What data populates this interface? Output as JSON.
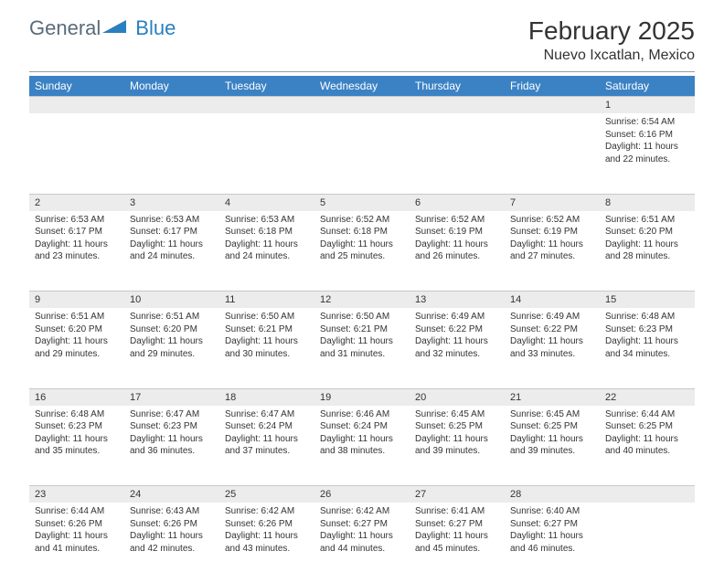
{
  "logo": {
    "text1": "General",
    "text2": "Blue"
  },
  "title": "February 2025",
  "location": "Nuevo Ixcatlan, Mexico",
  "colors": {
    "header_bg": "#3b82c4",
    "header_text": "#ffffff",
    "daynum_bg": "#ececec",
    "border": "#c8c8c8",
    "logo_gray": "#5a6b7a",
    "logo_blue": "#2a7fbf"
  },
  "weekdays": [
    "Sunday",
    "Monday",
    "Tuesday",
    "Wednesday",
    "Thursday",
    "Friday",
    "Saturday"
  ],
  "weeks": [
    [
      null,
      null,
      null,
      null,
      null,
      null,
      {
        "n": "1",
        "sr": "Sunrise: 6:54 AM",
        "ss": "Sunset: 6:16 PM",
        "dl": "Daylight: 11 hours and 22 minutes."
      }
    ],
    [
      {
        "n": "2",
        "sr": "Sunrise: 6:53 AM",
        "ss": "Sunset: 6:17 PM",
        "dl": "Daylight: 11 hours and 23 minutes."
      },
      {
        "n": "3",
        "sr": "Sunrise: 6:53 AM",
        "ss": "Sunset: 6:17 PM",
        "dl": "Daylight: 11 hours and 24 minutes."
      },
      {
        "n": "4",
        "sr": "Sunrise: 6:53 AM",
        "ss": "Sunset: 6:18 PM",
        "dl": "Daylight: 11 hours and 24 minutes."
      },
      {
        "n": "5",
        "sr": "Sunrise: 6:52 AM",
        "ss": "Sunset: 6:18 PM",
        "dl": "Daylight: 11 hours and 25 minutes."
      },
      {
        "n": "6",
        "sr": "Sunrise: 6:52 AM",
        "ss": "Sunset: 6:19 PM",
        "dl": "Daylight: 11 hours and 26 minutes."
      },
      {
        "n": "7",
        "sr": "Sunrise: 6:52 AM",
        "ss": "Sunset: 6:19 PM",
        "dl": "Daylight: 11 hours and 27 minutes."
      },
      {
        "n": "8",
        "sr": "Sunrise: 6:51 AM",
        "ss": "Sunset: 6:20 PM",
        "dl": "Daylight: 11 hours and 28 minutes."
      }
    ],
    [
      {
        "n": "9",
        "sr": "Sunrise: 6:51 AM",
        "ss": "Sunset: 6:20 PM",
        "dl": "Daylight: 11 hours and 29 minutes."
      },
      {
        "n": "10",
        "sr": "Sunrise: 6:51 AM",
        "ss": "Sunset: 6:20 PM",
        "dl": "Daylight: 11 hours and 29 minutes."
      },
      {
        "n": "11",
        "sr": "Sunrise: 6:50 AM",
        "ss": "Sunset: 6:21 PM",
        "dl": "Daylight: 11 hours and 30 minutes."
      },
      {
        "n": "12",
        "sr": "Sunrise: 6:50 AM",
        "ss": "Sunset: 6:21 PM",
        "dl": "Daylight: 11 hours and 31 minutes."
      },
      {
        "n": "13",
        "sr": "Sunrise: 6:49 AM",
        "ss": "Sunset: 6:22 PM",
        "dl": "Daylight: 11 hours and 32 minutes."
      },
      {
        "n": "14",
        "sr": "Sunrise: 6:49 AM",
        "ss": "Sunset: 6:22 PM",
        "dl": "Daylight: 11 hours and 33 minutes."
      },
      {
        "n": "15",
        "sr": "Sunrise: 6:48 AM",
        "ss": "Sunset: 6:23 PM",
        "dl": "Daylight: 11 hours and 34 minutes."
      }
    ],
    [
      {
        "n": "16",
        "sr": "Sunrise: 6:48 AM",
        "ss": "Sunset: 6:23 PM",
        "dl": "Daylight: 11 hours and 35 minutes."
      },
      {
        "n": "17",
        "sr": "Sunrise: 6:47 AM",
        "ss": "Sunset: 6:23 PM",
        "dl": "Daylight: 11 hours and 36 minutes."
      },
      {
        "n": "18",
        "sr": "Sunrise: 6:47 AM",
        "ss": "Sunset: 6:24 PM",
        "dl": "Daylight: 11 hours and 37 minutes."
      },
      {
        "n": "19",
        "sr": "Sunrise: 6:46 AM",
        "ss": "Sunset: 6:24 PM",
        "dl": "Daylight: 11 hours and 38 minutes."
      },
      {
        "n": "20",
        "sr": "Sunrise: 6:45 AM",
        "ss": "Sunset: 6:25 PM",
        "dl": "Daylight: 11 hours and 39 minutes."
      },
      {
        "n": "21",
        "sr": "Sunrise: 6:45 AM",
        "ss": "Sunset: 6:25 PM",
        "dl": "Daylight: 11 hours and 39 minutes."
      },
      {
        "n": "22",
        "sr": "Sunrise: 6:44 AM",
        "ss": "Sunset: 6:25 PM",
        "dl": "Daylight: 11 hours and 40 minutes."
      }
    ],
    [
      {
        "n": "23",
        "sr": "Sunrise: 6:44 AM",
        "ss": "Sunset: 6:26 PM",
        "dl": "Daylight: 11 hours and 41 minutes."
      },
      {
        "n": "24",
        "sr": "Sunrise: 6:43 AM",
        "ss": "Sunset: 6:26 PM",
        "dl": "Daylight: 11 hours and 42 minutes."
      },
      {
        "n": "25",
        "sr": "Sunrise: 6:42 AM",
        "ss": "Sunset: 6:26 PM",
        "dl": "Daylight: 11 hours and 43 minutes."
      },
      {
        "n": "26",
        "sr": "Sunrise: 6:42 AM",
        "ss": "Sunset: 6:27 PM",
        "dl": "Daylight: 11 hours and 44 minutes."
      },
      {
        "n": "27",
        "sr": "Sunrise: 6:41 AM",
        "ss": "Sunset: 6:27 PM",
        "dl": "Daylight: 11 hours and 45 minutes."
      },
      {
        "n": "28",
        "sr": "Sunrise: 6:40 AM",
        "ss": "Sunset: 6:27 PM",
        "dl": "Daylight: 11 hours and 46 minutes."
      },
      null
    ]
  ]
}
